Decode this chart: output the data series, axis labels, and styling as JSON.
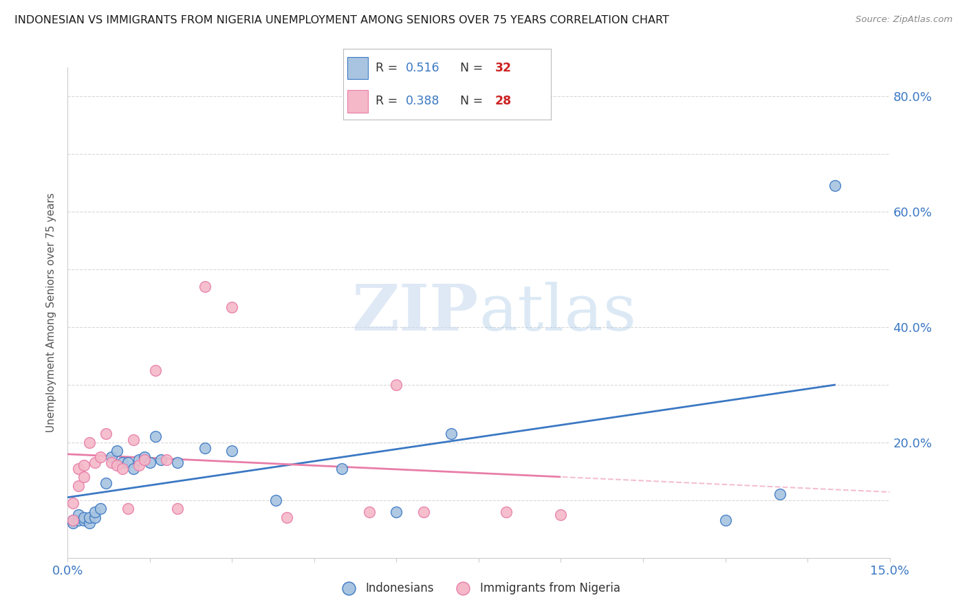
{
  "title": "INDONESIAN VS IMMIGRANTS FROM NIGERIA UNEMPLOYMENT AMONG SENIORS OVER 75 YEARS CORRELATION CHART",
  "source": "Source: ZipAtlas.com",
  "ylabel": "Unemployment Among Seniors over 75 years",
  "xlim": [
    0.0,
    0.15
  ],
  "ylim": [
    0.0,
    0.85
  ],
  "indonesian_x": [
    0.001,
    0.001,
    0.002,
    0.002,
    0.003,
    0.003,
    0.004,
    0.004,
    0.005,
    0.005,
    0.006,
    0.007,
    0.008,
    0.009,
    0.01,
    0.011,
    0.012,
    0.013,
    0.014,
    0.015,
    0.016,
    0.017,
    0.02,
    0.025,
    0.03,
    0.038,
    0.05,
    0.06,
    0.07,
    0.12,
    0.13,
    0.14
  ],
  "indonesian_y": [
    0.06,
    0.065,
    0.065,
    0.075,
    0.065,
    0.07,
    0.06,
    0.07,
    0.07,
    0.08,
    0.085,
    0.13,
    0.175,
    0.185,
    0.165,
    0.165,
    0.155,
    0.17,
    0.175,
    0.165,
    0.21,
    0.17,
    0.165,
    0.19,
    0.185,
    0.1,
    0.155,
    0.08,
    0.215,
    0.065,
    0.11,
    0.645
  ],
  "nigeria_x": [
    0.001,
    0.001,
    0.002,
    0.002,
    0.003,
    0.003,
    0.004,
    0.005,
    0.006,
    0.007,
    0.008,
    0.009,
    0.01,
    0.011,
    0.012,
    0.013,
    0.014,
    0.016,
    0.018,
    0.02,
    0.025,
    0.03,
    0.04,
    0.055,
    0.06,
    0.065,
    0.08,
    0.09
  ],
  "nigeria_y": [
    0.065,
    0.095,
    0.125,
    0.155,
    0.14,
    0.16,
    0.2,
    0.165,
    0.175,
    0.215,
    0.165,
    0.16,
    0.155,
    0.085,
    0.205,
    0.16,
    0.17,
    0.325,
    0.17,
    0.085,
    0.47,
    0.435,
    0.07,
    0.08,
    0.3,
    0.08,
    0.08,
    0.075
  ],
  "indonesian_color": "#a8c4e0",
  "nigeria_color": "#f4b8c8",
  "indonesian_line_color": "#3b78c3",
  "nigeria_line_color": "#e87da8",
  "R_indonesian": 0.516,
  "N_indonesian": 32,
  "R_nigeria": 0.388,
  "N_nigeria": 28,
  "watermark_zip": "ZIP",
  "watermark_atlas": "atlas",
  "background_color": "#ffffff",
  "grid_color": "#d8d8d8"
}
